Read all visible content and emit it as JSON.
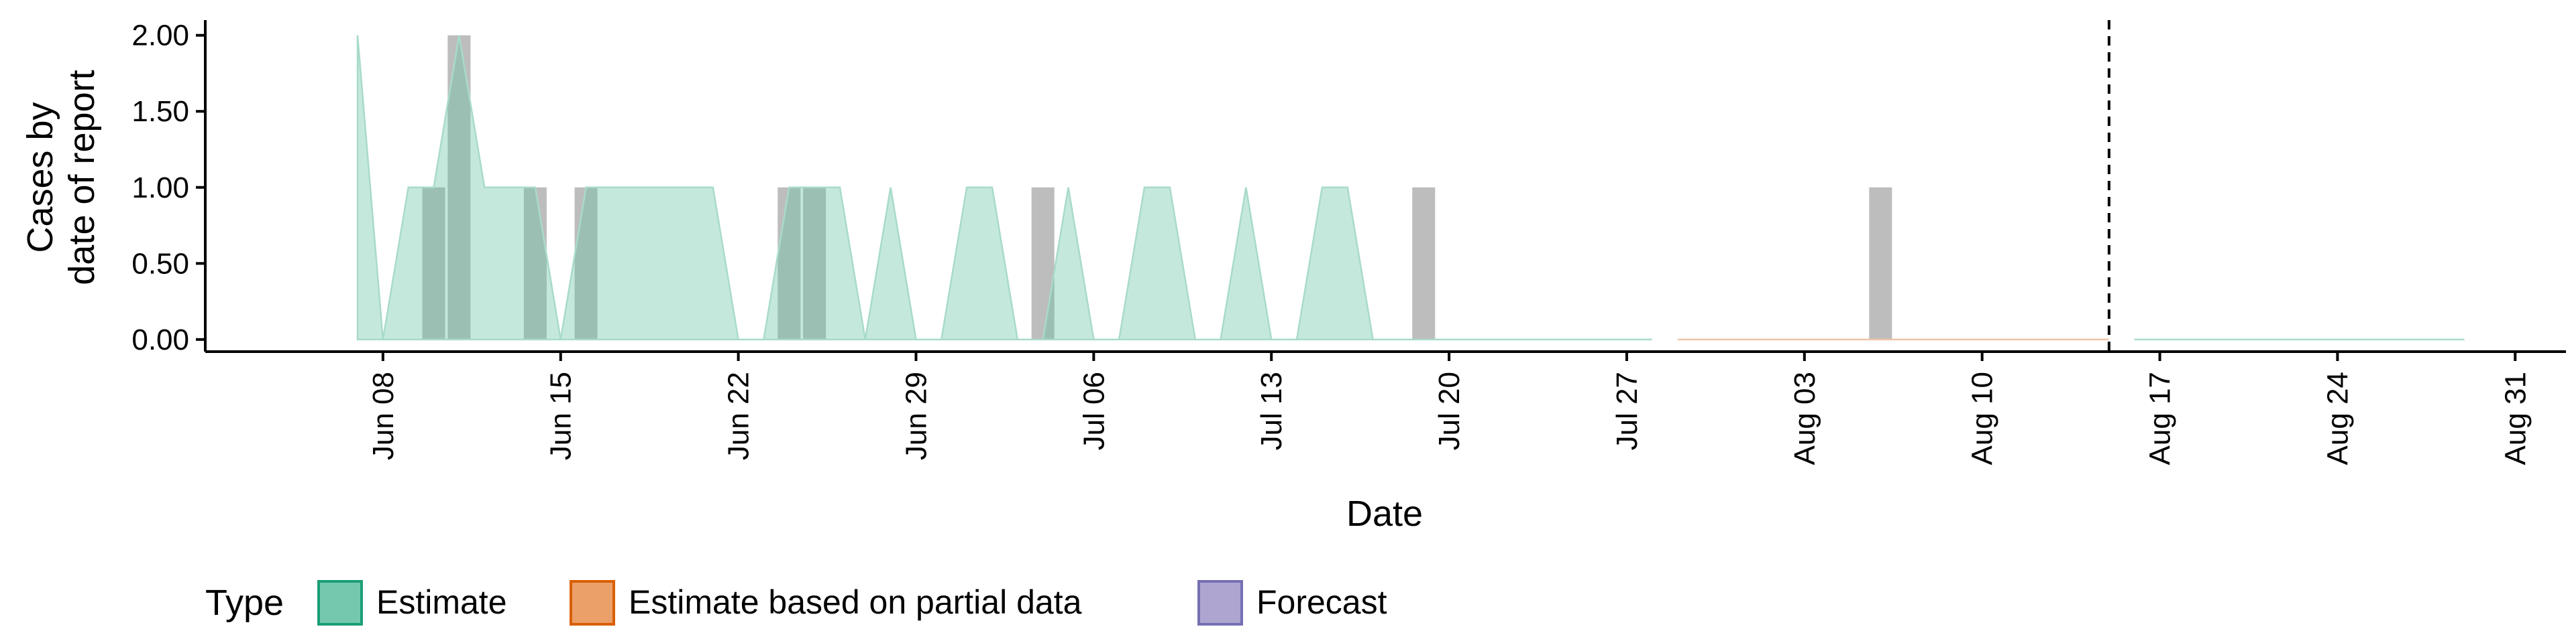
{
  "chart_data": {
    "type": "area",
    "ylabel_lines": [
      "Cases by",
      "date of report"
    ],
    "xlabel": "Date",
    "x_domain": [
      "2020-06-01",
      "2020-09-02"
    ],
    "ylim": [
      -0.08,
      2.1
    ],
    "y_ticks": [
      0.0,
      0.5,
      1.0,
      1.5,
      2.0
    ],
    "y_tick_labels": [
      "0.00",
      "0.50",
      "1.00",
      "1.50",
      "2.00"
    ],
    "x_ticks": [
      "2020-06-08",
      "2020-06-15",
      "2020-06-22",
      "2020-06-29",
      "2020-07-06",
      "2020-07-13",
      "2020-07-20",
      "2020-07-27",
      "2020-08-03",
      "2020-08-10",
      "2020-08-17",
      "2020-08-24",
      "2020-08-31"
    ],
    "x_tick_labels": [
      "Jun 08",
      "Jun 15",
      "Jun 22",
      "Jun 29",
      "Jul 06",
      "Jul 13",
      "Jul 20",
      "Jul 27",
      "Aug 03",
      "Aug 10",
      "Aug 17",
      "Aug 24",
      "Aug 31"
    ],
    "forecast_date": "2020-08-15",
    "grid": false,
    "legend": {
      "title": "Type",
      "position": "bottom",
      "entries": [
        {
          "label": "Estimate",
          "fill": "#66c2a5",
          "stroke": "#1b9e77"
        },
        {
          "label": "Estimate based on partial data",
          "fill": "#e9965a",
          "stroke": "#d95f02"
        },
        {
          "label": "Forecast",
          "fill": "#a59bcc",
          "stroke": "#7570b3"
        }
      ]
    },
    "bars": {
      "color": "#bdbdbd",
      "points": [
        {
          "date": "2020-06-10",
          "value": 1
        },
        {
          "date": "2020-06-11",
          "value": 2
        },
        {
          "date": "2020-06-14",
          "value": 1
        },
        {
          "date": "2020-06-16",
          "value": 1
        },
        {
          "date": "2020-06-24",
          "value": 1
        },
        {
          "date": "2020-06-25",
          "value": 1
        },
        {
          "date": "2020-07-04",
          "value": 1
        },
        {
          "date": "2020-07-19",
          "value": 1
        },
        {
          "date": "2020-08-06",
          "value": 1
        }
      ]
    },
    "series": [
      {
        "name": "Estimate",
        "fill": "#66c2a5",
        "fill_opacity": 0.38,
        "stroke": "#a8dbc9",
        "points": [
          [
            "2020-06-07",
            0.0
          ],
          [
            "2020-06-07",
            2.0
          ],
          [
            "2020-06-08",
            0.0
          ],
          [
            "2020-06-09",
            1.0
          ],
          [
            "2020-06-10",
            1.0
          ],
          [
            "2020-06-11",
            2.0
          ],
          [
            "2020-06-12",
            1.0
          ],
          [
            "2020-06-13",
            1.0
          ],
          [
            "2020-06-14",
            1.0
          ],
          [
            "2020-06-15",
            0.0
          ],
          [
            "2020-06-16",
            1.0
          ],
          [
            "2020-06-17",
            1.0
          ],
          [
            "2020-06-18",
            1.0
          ],
          [
            "2020-06-19",
            1.0
          ],
          [
            "2020-06-20",
            1.0
          ],
          [
            "2020-06-21",
            1.0
          ],
          [
            "2020-06-22",
            0.0
          ],
          [
            "2020-06-23",
            0.0
          ],
          [
            "2020-06-24",
            1.0
          ],
          [
            "2020-06-25",
            1.0
          ],
          [
            "2020-06-26",
            1.0
          ],
          [
            "2020-06-27",
            0.0
          ],
          [
            "2020-06-28",
            1.0
          ],
          [
            "2020-06-29",
            0.0
          ],
          [
            "2020-06-30",
            0.0
          ],
          [
            "2020-07-01",
            1.0
          ],
          [
            "2020-07-02",
            1.0
          ],
          [
            "2020-07-03",
            0.0
          ],
          [
            "2020-07-04",
            0.0
          ],
          [
            "2020-07-05",
            1.0
          ],
          [
            "2020-07-06",
            0.0
          ],
          [
            "2020-07-07",
            0.0
          ],
          [
            "2020-07-08",
            1.0
          ],
          [
            "2020-07-09",
            1.0
          ],
          [
            "2020-07-10",
            0.0
          ],
          [
            "2020-07-11",
            0.0
          ],
          [
            "2020-07-12",
            1.0
          ],
          [
            "2020-07-13",
            0.0
          ],
          [
            "2020-07-14",
            0.0
          ],
          [
            "2020-07-15",
            1.0
          ],
          [
            "2020-07-16",
            1.0
          ],
          [
            "2020-07-17",
            0.0
          ],
          [
            "2020-07-18",
            0.0
          ],
          [
            "2020-07-28",
            0.0
          ]
        ]
      },
      {
        "name": "Estimate based on partial data",
        "fill": "#e9965a",
        "fill_opacity": 0.4,
        "stroke": "#f0c4a6",
        "points": [
          [
            "2020-07-29",
            0.0
          ],
          [
            "2020-08-15",
            0.0
          ]
        ]
      },
      {
        "name": "Forecast",
        "fill": "#a59bcc",
        "fill_opacity": 0.4,
        "stroke": "#a8dbc9",
        "points": [
          [
            "2020-08-16",
            0.0
          ],
          [
            "2020-08-29",
            0.0
          ]
        ]
      }
    ]
  }
}
